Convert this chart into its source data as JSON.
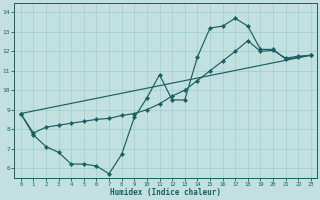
{
  "title": "",
  "xlabel": "Humidex (Indice chaleur)",
  "xlim": [
    -0.5,
    23.5
  ],
  "ylim": [
    5.5,
    14.5
  ],
  "xticks": [
    0,
    1,
    2,
    3,
    4,
    5,
    6,
    7,
    8,
    9,
    10,
    11,
    12,
    13,
    14,
    15,
    16,
    17,
    18,
    19,
    20,
    21,
    22,
    23
  ],
  "yticks": [
    6,
    7,
    8,
    9,
    10,
    11,
    12,
    13,
    14
  ],
  "bg_color": "#c2e0e0",
  "grid_color": "#9ecece",
  "line_color": "#1a6060",
  "line1_x": [
    0,
    1,
    2,
    3,
    4,
    5,
    6,
    7,
    8,
    9,
    10,
    11,
    12,
    13,
    14,
    15,
    16,
    17,
    18,
    19,
    20,
    21,
    22,
    23
  ],
  "line1_y": [
    8.8,
    7.7,
    7.1,
    6.8,
    6.2,
    6.2,
    6.1,
    5.7,
    6.7,
    8.6,
    9.6,
    10.8,
    9.5,
    9.5,
    11.7,
    13.2,
    13.3,
    13.7,
    13.3,
    12.1,
    12.1,
    11.6,
    11.7,
    11.8
  ],
  "line2_x": [
    0,
    1,
    2,
    3,
    4,
    5,
    6,
    7,
    8,
    9,
    10,
    11,
    12,
    13,
    14,
    15,
    16,
    17,
    18,
    19,
    20,
    21,
    22,
    23
  ],
  "line2_y": [
    8.8,
    7.8,
    8.1,
    8.2,
    8.3,
    8.4,
    8.5,
    8.55,
    8.7,
    8.8,
    9.0,
    9.3,
    9.7,
    10.0,
    10.5,
    11.0,
    11.5,
    12.0,
    12.55,
    12.0,
    12.05,
    11.65,
    11.75,
    11.8
  ],
  "line3_x": [
    0,
    23
  ],
  "line3_y": [
    8.8,
    11.8
  ]
}
